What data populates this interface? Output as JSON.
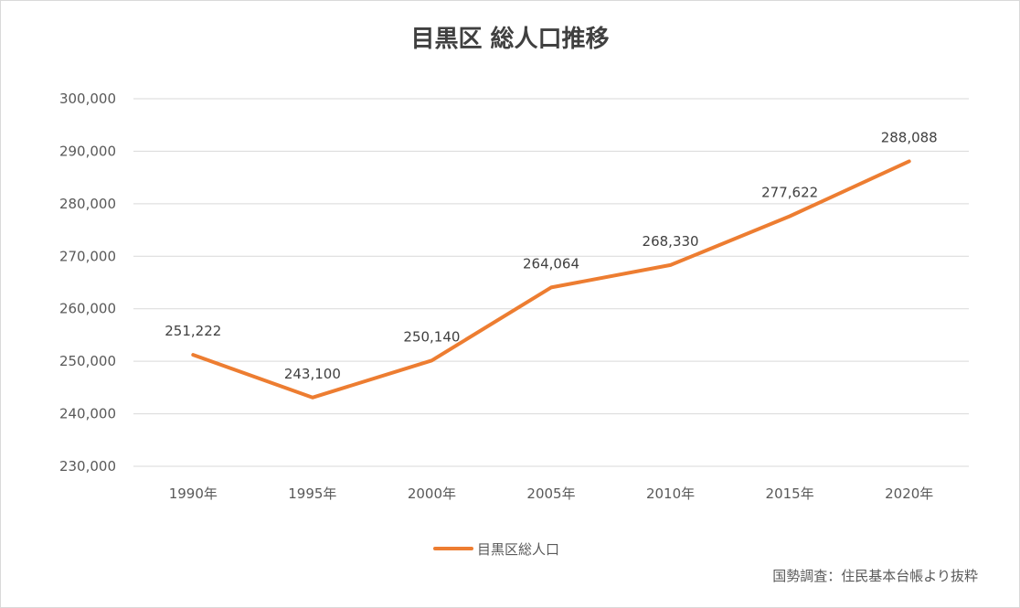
{
  "chart_data": {
    "type": "line",
    "title": "目黒区 総人口推移",
    "categories": [
      "1990年",
      "1995年",
      "2000年",
      "2005年",
      "2010年",
      "2015年",
      "2020年"
    ],
    "series": [
      {
        "name": "目黒区総人口",
        "values": [
          251222,
          243100,
          250140,
          264064,
          268330,
          277622,
          288088
        ],
        "labels": [
          "251,222",
          "243,100",
          "250,140",
          "264,064",
          "268,330",
          "277,622",
          "288,088"
        ],
        "color": "#ed7d31"
      }
    ],
    "ylim": [
      230000,
      300000
    ],
    "yticks": [
      "230,000",
      "240,000",
      "250,000",
      "260,000",
      "270,000",
      "280,000",
      "290,000",
      "300,000"
    ],
    "grid": true,
    "legend_position": "bottom",
    "source_note": "国勢調査：住民基本台帳より抜粋"
  },
  "colors": {
    "line": "#ed7d31",
    "grid": "#d9d9d9",
    "text": "#595959"
  }
}
